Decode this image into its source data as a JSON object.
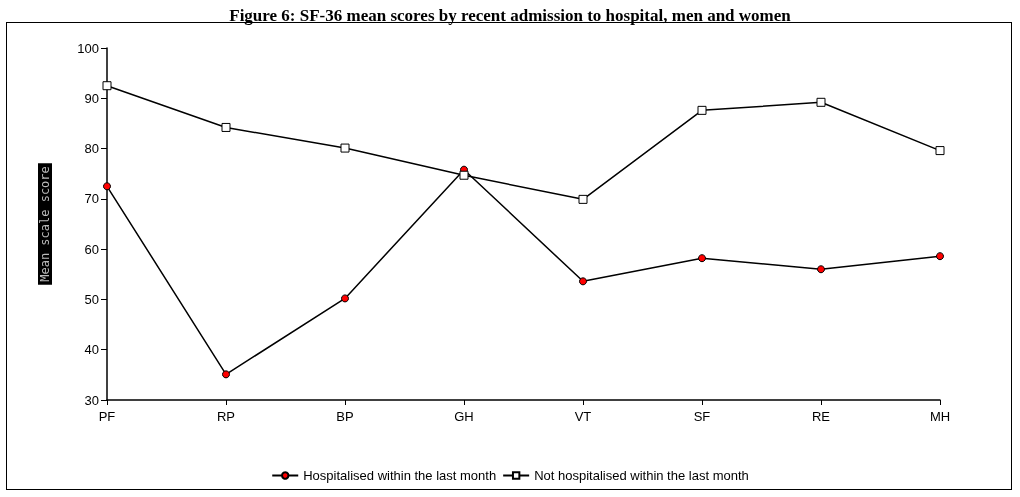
{
  "chart_data": {
    "type": "line",
    "title": "Figure 6: SF-36 mean scores by recent admission to hospital, men and women",
    "ylabel": "Mean scale score",
    "categories": [
      "PF",
      "RP",
      "BP",
      "GH",
      "VT",
      "SF",
      "RE",
      "MH"
    ],
    "series": [
      {
        "name": "Hospitalised within the last month",
        "color": "#ff0000",
        "marker": "circle",
        "values": [
          72.5,
          35.1,
          50.2,
          75.8,
          53.6,
          58.2,
          56.0,
          58.6
        ]
      },
      {
        "name": "Not hospitalised within the last month",
        "color": "#ffffff",
        "marker": "square",
        "values": [
          92.5,
          84.2,
          80.1,
          74.7,
          69.9,
          87.6,
          89.2,
          79.6
        ]
      }
    ],
    "ylim": [
      30,
      100
    ],
    "yticks": [
      30,
      40,
      50,
      60,
      70,
      80,
      90,
      100
    ],
    "grid": false,
    "legend": "bottom",
    "line_style": "solid"
  }
}
